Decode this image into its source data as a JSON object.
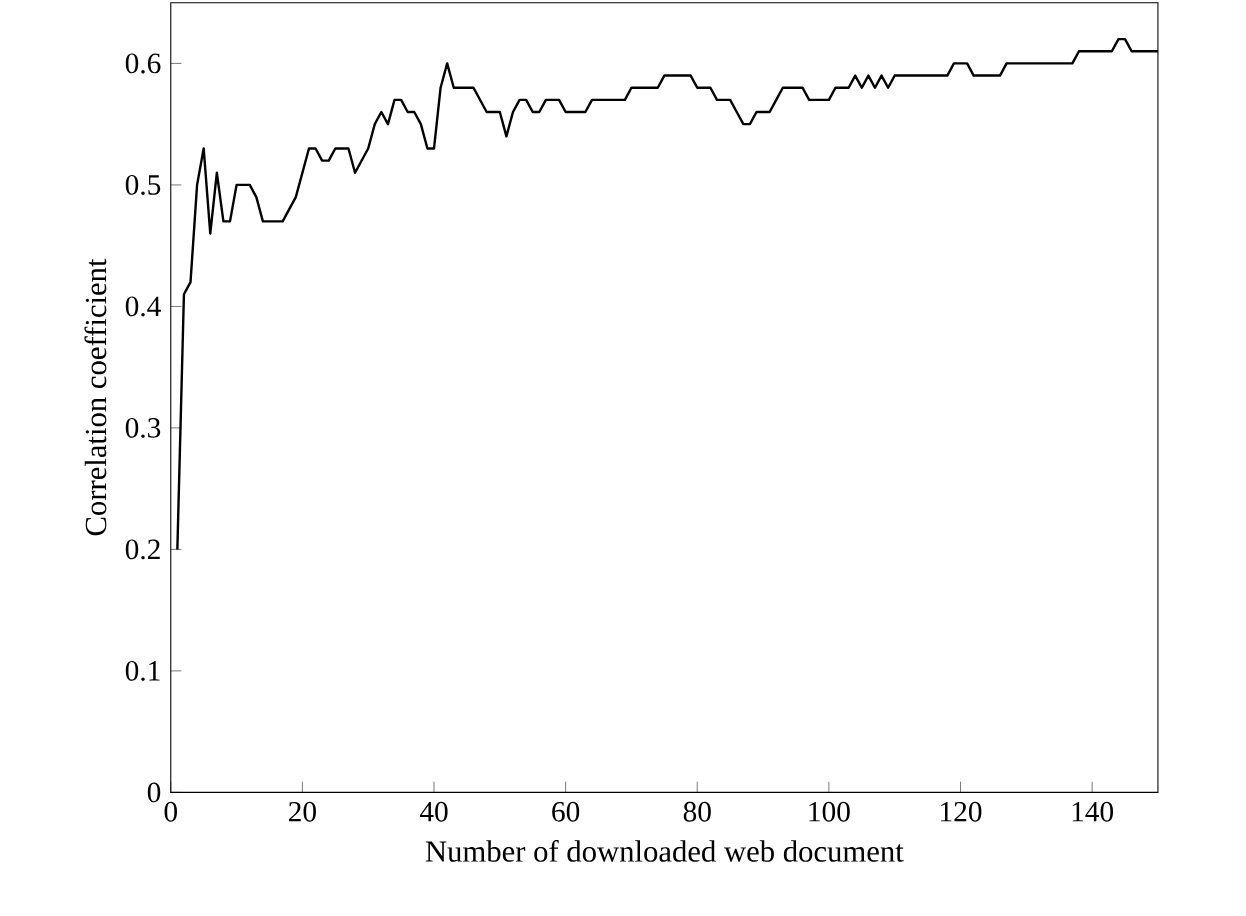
{
  "chart_data": {
    "type": "line",
    "xlabel": "Number of downloaded web document",
    "ylabel": "Correlation coefficient",
    "xlim": [
      0,
      150
    ],
    "ylim": [
      0,
      0.65
    ],
    "xticks": [
      0,
      20,
      40,
      60,
      80,
      100,
      120,
      140
    ],
    "yticks": [
      0,
      0.1,
      0.2,
      0.3,
      0.4,
      0.5,
      0.6
    ],
    "grid": false,
    "marker": "none",
    "line_style": "solid",
    "series": [
      {
        "color": "#000000",
        "x": [
          1,
          2,
          3,
          4,
          5,
          6,
          7,
          8,
          9,
          10,
          12,
          13,
          14,
          17,
          19,
          21,
          22,
          23,
          24,
          25,
          27,
          28,
          30,
          31,
          32,
          33,
          34,
          35,
          36,
          37,
          38,
          39,
          40,
          41,
          42,
          43,
          46,
          48,
          50,
          51,
          52,
          53,
          54,
          55,
          56,
          57,
          59,
          60,
          63,
          64,
          69,
          70,
          74,
          75,
          79,
          80,
          82,
          83,
          85,
          86,
          87,
          88,
          89,
          91,
          92,
          93,
          96,
          97,
          100,
          101,
          103,
          104,
          105,
          106,
          107,
          108,
          109,
          110,
          118,
          119,
          121,
          122,
          126,
          127,
          137,
          138,
          143,
          144,
          145,
          146,
          150
        ],
        "values": [
          0.2,
          0.41,
          0.42,
          0.5,
          0.53,
          0.46,
          0.51,
          0.47,
          0.47,
          0.5,
          0.5,
          0.49,
          0.47,
          0.47,
          0.49,
          0.53,
          0.53,
          0.52,
          0.52,
          0.53,
          0.53,
          0.51,
          0.53,
          0.55,
          0.56,
          0.55,
          0.57,
          0.57,
          0.56,
          0.56,
          0.55,
          0.53,
          0.53,
          0.58,
          0.6,
          0.58,
          0.58,
          0.56,
          0.56,
          0.54,
          0.56,
          0.57,
          0.57,
          0.56,
          0.56,
          0.57,
          0.57,
          0.56,
          0.56,
          0.57,
          0.57,
          0.58,
          0.58,
          0.59,
          0.59,
          0.58,
          0.58,
          0.57,
          0.57,
          0.56,
          0.55,
          0.55,
          0.56,
          0.56,
          0.57,
          0.58,
          0.58,
          0.57,
          0.57,
          0.58,
          0.58,
          0.59,
          0.58,
          0.59,
          0.58,
          0.59,
          0.58,
          0.59,
          0.59,
          0.6,
          0.6,
          0.59,
          0.59,
          0.6,
          0.6,
          0.61,
          0.61,
          0.62,
          0.62,
          0.61,
          0.61
        ]
      }
    ]
  }
}
